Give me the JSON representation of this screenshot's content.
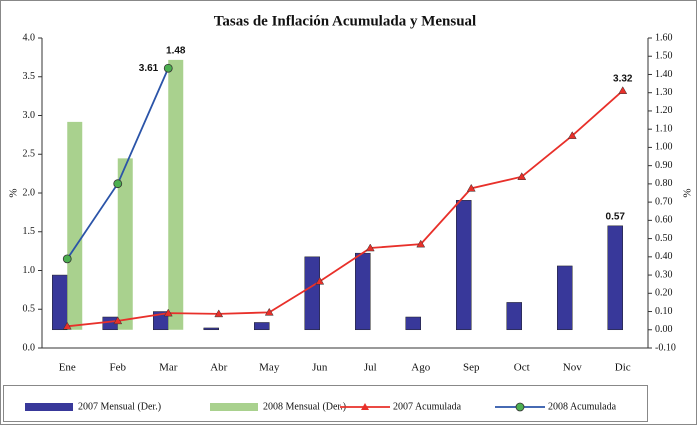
{
  "chart_data": {
    "type": "combo",
    "title": "Tasas de Inflación Acumulada y Mensual",
    "y_label": "%",
    "y2_label": "%",
    "categories": [
      "Ene",
      "Feb",
      "Mar",
      "Abr",
      "May",
      "Jun",
      "Jul",
      "Ago",
      "Sep",
      "Oct",
      "Nov",
      "Dic"
    ],
    "ylim": [
      0,
      4
    ],
    "yticks": [
      {
        "value": 0,
        "label": "0.0"
      },
      0.5,
      {
        "value": 1,
        "label": "1.0"
      },
      1.5,
      {
        "value": 2,
        "label": "2.0"
      },
      2.5,
      {
        "value": 3,
        "label": "3.0"
      },
      3.5,
      {
        "value": 4,
        "label": "4.0"
      }
    ],
    "y2lim": [
      -0.1,
      1.6
    ],
    "y2ticks": [
      {
        "value": -0.1,
        "label": "-0.10"
      },
      {
        "value": 0,
        "label": "0.00"
      },
      {
        "value": 0.1,
        "label": "0.10"
      },
      {
        "value": 0.2,
        "label": "0.20"
      },
      {
        "value": 0.3,
        "label": "0.30"
      },
      {
        "value": 0.4,
        "label": "0.40"
      },
      {
        "value": 0.5,
        "label": "0.50"
      },
      {
        "value": 0.6,
        "label": "0.60"
      },
      {
        "value": 0.7,
        "label": "0.70"
      },
      {
        "value": 0.8,
        "label": "0.80"
      },
      {
        "value": 0.9,
        "label": "0.90"
      },
      {
        "value": 1.0,
        "label": "1.00"
      },
      {
        "value": 1.1,
        "label": "1.10"
      },
      {
        "value": 1.2,
        "label": "1.20"
      },
      {
        "value": 1.3,
        "label": "1.30"
      },
      {
        "value": 1.4,
        "label": "1.40"
      },
      {
        "value": 1.5,
        "label": "1.50"
      },
      {
        "value": 1.6,
        "label": "1.60"
      }
    ],
    "legend": "bottom",
    "series": [
      {
        "name": "2007 Mensual (Der.)",
        "type": "bar",
        "axis": "y2",
        "color": "#38389a",
        "label_color": "#3a5fa8",
        "label_points": [
          11
        ],
        "values": [
          0.3,
          0.07,
          0.1,
          0.01,
          0.04,
          0.4,
          0.42,
          0.07,
          0.71,
          0.15,
          0.35,
          0.57
        ]
      },
      {
        "name": "2008 Mensual (Der.)",
        "type": "bar",
        "axis": "y2",
        "color": "#a9d18e",
        "label_color": "#111111",
        "label_points": [
          2
        ],
        "values": [
          1.14,
          0.94,
          1.48,
          null,
          null,
          null,
          null,
          null,
          null,
          null,
          null,
          null
        ]
      },
      {
        "name": "2007 Acumulada",
        "type": "line",
        "color": "#e8302a",
        "marker": "triangle",
        "marker_color": "#e8302a",
        "label_color": "#e8302a",
        "label_points": [
          11
        ],
        "values": [
          0.28,
          0.35,
          0.45,
          0.44,
          0.46,
          0.86,
          1.29,
          1.34,
          2.06,
          2.21,
          2.74,
          3.32
        ]
      },
      {
        "name": "2008 Acumulada",
        "type": "line",
        "color": "#2b54a8",
        "marker": "circle",
        "marker_color": "#4caf50",
        "label_color": "#2b54a8",
        "label_points": [
          2
        ],
        "values": [
          1.15,
          2.12,
          3.61,
          null,
          null,
          null,
          null,
          null,
          null,
          null,
          null,
          null
        ]
      }
    ]
  }
}
